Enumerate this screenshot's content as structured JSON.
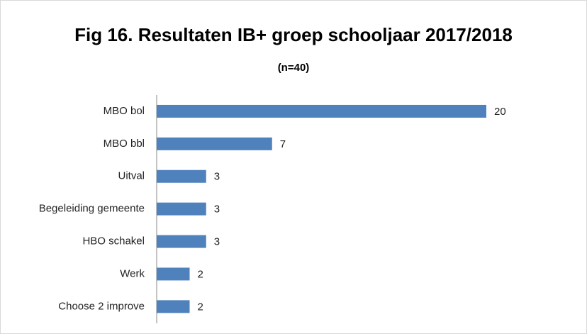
{
  "chart_data": {
    "type": "hbar",
    "title": "Fig 16. Resultaten IB+ groep schooljaar 2017/2018",
    "subtitle": "(n=40)",
    "categories": [
      "MBO bol",
      "MBO bbl",
      "Uitval",
      "Begeleiding gemeente",
      "HBO schakel",
      "Werk",
      "Choose 2 improve"
    ],
    "values": [
      20,
      7,
      3,
      3,
      3,
      2,
      2
    ],
    "color": "#4f81bd"
  }
}
